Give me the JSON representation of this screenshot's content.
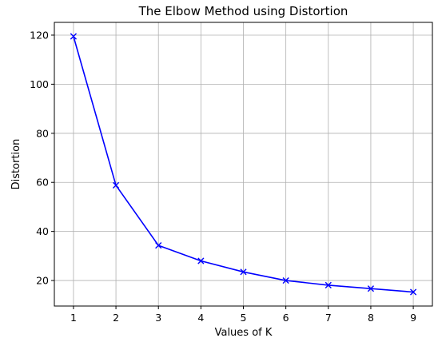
{
  "chart_data": {
    "type": "line",
    "title": "The Elbow Method using Distortion",
    "xlabel": "Values of K",
    "ylabel": "Distortion",
    "x": [
      1,
      2,
      3,
      4,
      5,
      6,
      7,
      8,
      9
    ],
    "series": [
      {
        "values": [
          119.5,
          58.8,
          34.3,
          28.0,
          23.5,
          20.0,
          18.1,
          16.7,
          15.3
        ],
        "color": "#0000ff",
        "marker": "x"
      }
    ],
    "xticks": [
      1,
      2,
      3,
      4,
      5,
      6,
      7,
      8,
      9
    ],
    "yticks": [
      20,
      40,
      60,
      80,
      100,
      120
    ],
    "xlim": [
      0.55,
      9.45
    ],
    "ylim": [
      9.6,
      125.2
    ],
    "grid": true
  }
}
